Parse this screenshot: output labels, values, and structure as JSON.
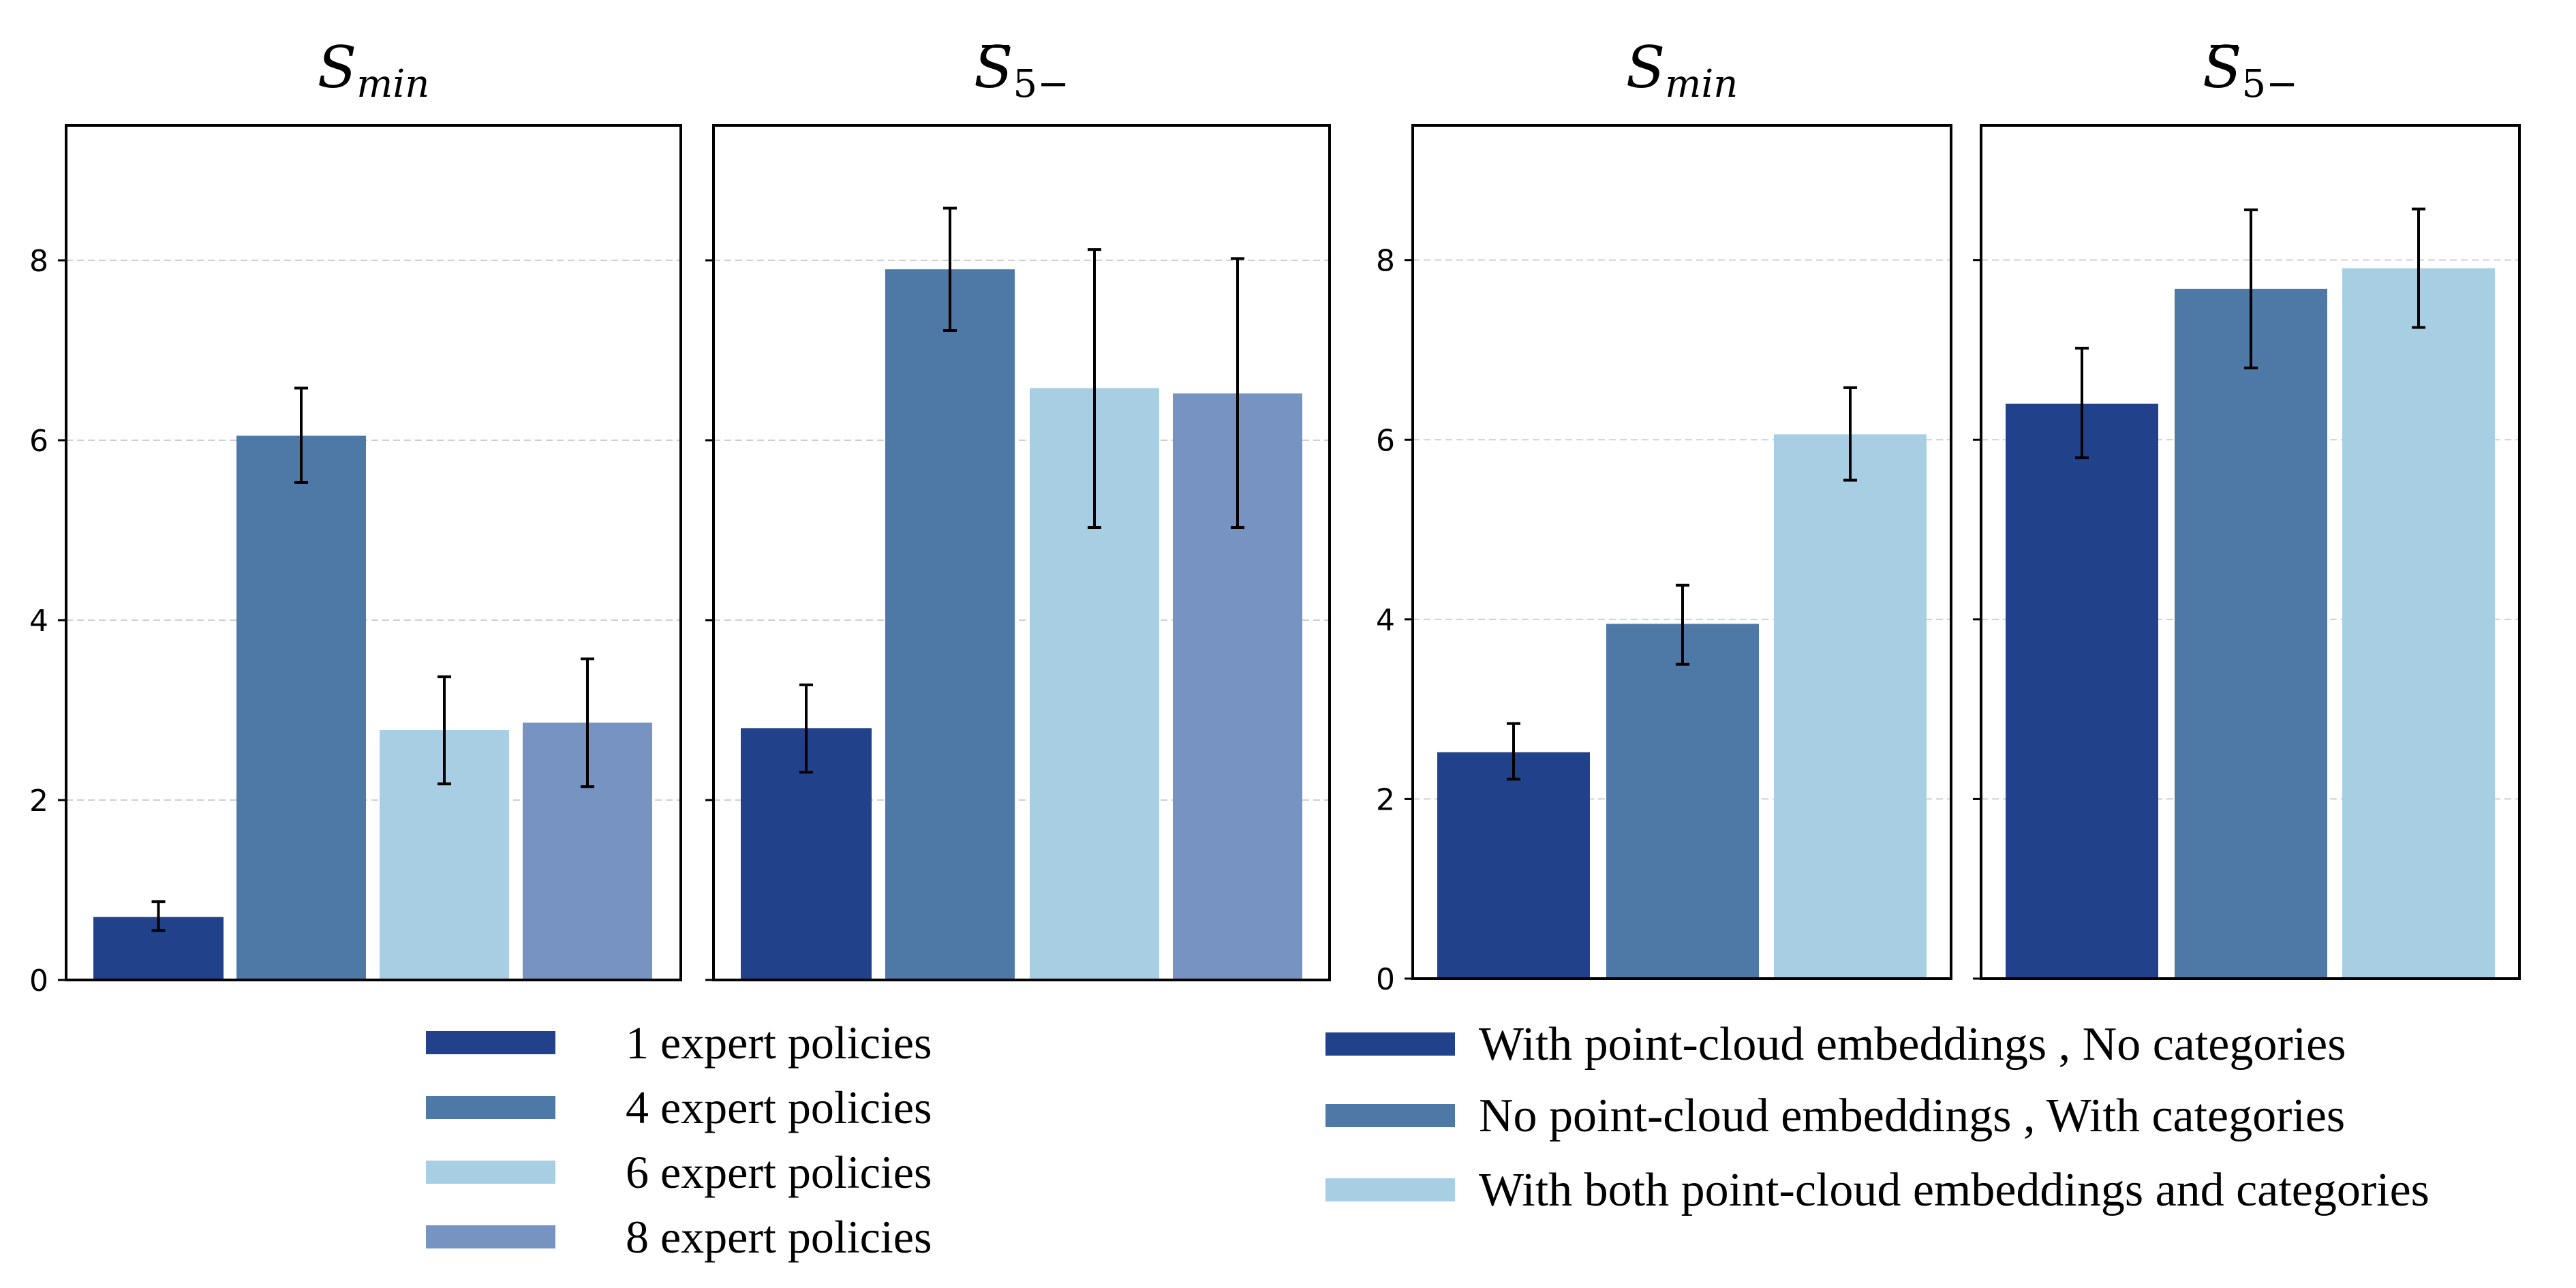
{
  "chart_data": [
    {
      "type": "bar",
      "title": "S_min",
      "title_main": "S",
      "title_sub": "min",
      "title_bar": false,
      "ylim": [
        0,
        9.5
      ],
      "yticks": [
        "0",
        "2",
        "4",
        "6",
        "8"
      ],
      "grid": true,
      "series": [
        {
          "name": "1 expert policies",
          "value": 0.7,
          "err_low": 0.55,
          "err_high": 0.87,
          "color": "#21428a"
        },
        {
          "name": "4 expert policies",
          "value": 6.05,
          "err_low": 5.53,
          "err_high": 6.58,
          "color": "#4e78a5"
        },
        {
          "name": "6 expert policies",
          "value": 2.78,
          "err_low": 2.18,
          "err_high": 3.37,
          "color": "#a8cee3"
        },
        {
          "name": "8 expert policies",
          "value": 2.86,
          "err_low": 2.15,
          "err_high": 3.57,
          "color": "#7793c2"
        }
      ]
    },
    {
      "type": "bar",
      "title": "S̄_5−",
      "title_main": "S",
      "title_sub": "5−",
      "title_bar": true,
      "ylim": [
        0,
        9.5
      ],
      "yticks": [],
      "grid": true,
      "series": [
        {
          "name": "1 expert policies",
          "value": 2.8,
          "err_low": 2.31,
          "err_high": 3.28,
          "color": "#21428a"
        },
        {
          "name": "4 expert policies",
          "value": 7.9,
          "err_low": 7.22,
          "err_high": 8.58,
          "color": "#4e78a5"
        },
        {
          "name": "6 expert policies",
          "value": 6.58,
          "err_low": 5.03,
          "err_high": 8.12,
          "color": "#a8cee3"
        },
        {
          "name": "8 expert policies",
          "value": 6.52,
          "err_low": 5.03,
          "err_high": 8.02,
          "color": "#7793c2"
        }
      ]
    },
    {
      "type": "bar",
      "title": "S_min",
      "title_main": "S",
      "title_sub": "min",
      "title_bar": false,
      "ylim": [
        0,
        9.5
      ],
      "yticks": [
        "0",
        "2",
        "4",
        "6",
        "8"
      ],
      "grid": true,
      "series": [
        {
          "name": "With point-cloud embeddings , No categories",
          "value": 2.52,
          "err_low": 2.22,
          "err_high": 2.84,
          "color": "#21428a"
        },
        {
          "name": "No point-cloud embeddings , With categories",
          "value": 3.95,
          "err_low": 3.5,
          "err_high": 4.38,
          "color": "#4e78a5"
        },
        {
          "name": "With both point-cloud embeddings and categories",
          "value": 6.06,
          "err_low": 5.55,
          "err_high": 6.58,
          "color": "#a8cee3"
        }
      ]
    },
    {
      "type": "bar",
      "title": "S̄_5−",
      "title_main": "S",
      "title_sub": "5−",
      "title_bar": true,
      "ylim": [
        0,
        9.5
      ],
      "yticks": [],
      "grid": true,
      "series": [
        {
          "name": "With point-cloud embeddings , No categories",
          "value": 6.4,
          "err_low": 5.8,
          "err_high": 7.02,
          "color": "#21428a"
        },
        {
          "name": "No point-cloud embeddings , With categories",
          "value": 7.68,
          "err_low": 6.8,
          "err_high": 8.56,
          "color": "#4e78a5"
        },
        {
          "name": "With both point-cloud embeddings and categories",
          "value": 7.91,
          "err_low": 7.25,
          "err_high": 8.57,
          "color": "#a8cee3"
        }
      ]
    }
  ],
  "legends": [
    {
      "position": "bottom-left",
      "items": [
        {
          "label": "1 expert policies",
          "color": "#21428a"
        },
        {
          "label": "4 expert policies",
          "color": "#4e78a5"
        },
        {
          "label": "6 expert policies",
          "color": "#a8cee3"
        },
        {
          "label": "8 expert policies",
          "color": "#7793c2"
        }
      ]
    },
    {
      "position": "bottom-right",
      "items": [
        {
          "label": "With point-cloud embeddings , No categories",
          "color": "#21428a"
        },
        {
          "label": "No point-cloud embeddings , With categories",
          "color": "#4e78a5"
        },
        {
          "label": "With both point-cloud embeddings and categories",
          "color": "#a8cee3"
        }
      ]
    }
  ]
}
